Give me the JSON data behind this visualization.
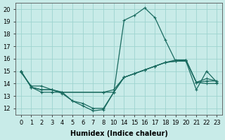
{
  "xlabel": "Humidex (Indice chaleur)",
  "ylabel": "",
  "bg_color": "#c8ebe8",
  "grid_color": "#9dd4cf",
  "line_color": "#1a6b60",
  "ylim": [
    11.5,
    20.5
  ],
  "yticks": [
    12,
    13,
    14,
    15,
    16,
    17,
    18,
    19,
    20
  ],
  "x_categories": [
    0,
    1,
    2,
    3,
    4,
    5,
    6,
    7,
    8,
    10,
    14,
    15,
    16,
    17,
    18,
    19,
    20,
    21,
    22,
    23
  ],
  "curves": [
    {
      "x": [
        0,
        1,
        2,
        3,
        4,
        5,
        6,
        7,
        8,
        10,
        14,
        15,
        16,
        17,
        18,
        19,
        20,
        21,
        22,
        23
      ],
      "y": [
        15.0,
        13.7,
        13.5,
        13.5,
        13.3,
        12.6,
        12.2,
        11.8,
        11.9,
        13.3,
        19.1,
        19.5,
        20.1,
        19.3,
        17.5,
        15.8,
        15.8,
        13.5,
        15.0,
        14.1
      ]
    },
    {
      "x": [
        0,
        1,
        2,
        3,
        4,
        5,
        6,
        7,
        8,
        10,
        14,
        15,
        16,
        17,
        18,
        19,
        20,
        21,
        22,
        23
      ],
      "y": [
        14.9,
        13.8,
        13.8,
        13.5,
        13.2,
        12.6,
        12.4,
        12.0,
        12.0,
        13.3,
        14.5,
        14.8,
        15.1,
        15.4,
        15.7,
        15.8,
        15.9,
        14.1,
        14.0,
        14.0
      ]
    },
    {
      "x": [
        0,
        1,
        2,
        3,
        4,
        8,
        10,
        14,
        15,
        16,
        17,
        18,
        19,
        20,
        21,
        22,
        23
      ],
      "y": [
        15.0,
        13.7,
        13.5,
        13.5,
        13.3,
        13.3,
        13.3,
        14.5,
        14.8,
        15.1,
        15.4,
        15.7,
        15.8,
        15.9,
        14.1,
        14.2,
        14.2
      ]
    },
    {
      "x": [
        0,
        1,
        2,
        3,
        4,
        8,
        10,
        14,
        15,
        16,
        17,
        18,
        19,
        20,
        21,
        22,
        23
      ],
      "y": [
        15.0,
        13.7,
        13.3,
        13.3,
        13.3,
        13.3,
        13.5,
        14.5,
        14.8,
        15.1,
        15.4,
        15.7,
        15.9,
        15.9,
        14.1,
        14.4,
        14.2
      ]
    }
  ],
  "marker": "+",
  "marker_size": 3.5,
  "line_width": 0.9,
  "font_size": 7
}
